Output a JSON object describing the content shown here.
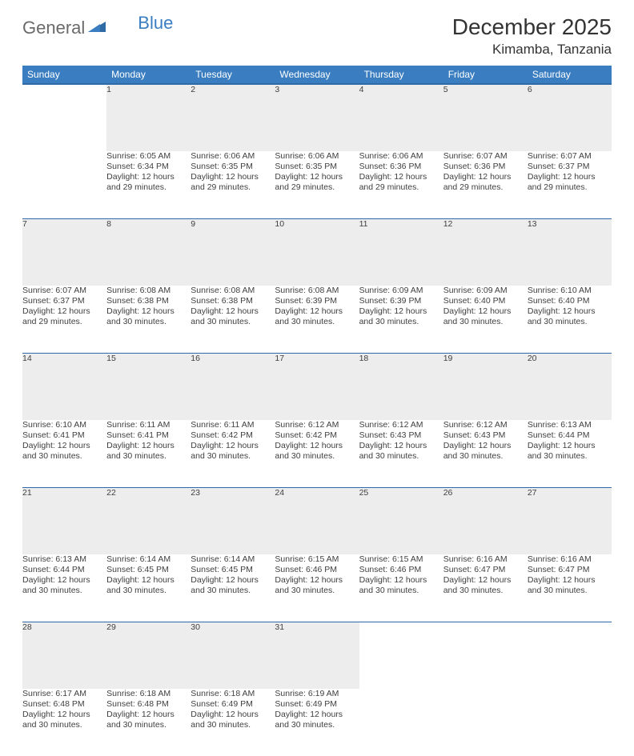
{
  "brand": {
    "part1": "General",
    "part2": "Blue"
  },
  "title": "December 2025",
  "location": "Kimamba, Tanzania",
  "colors": {
    "header_bg": "#3a7ec1",
    "header_border": "#2f6aa5",
    "daynum_bg": "#ededed",
    "text": "#333333",
    "logo_gray": "#6a6a6a",
    "logo_blue": "#3a7ec1"
  },
  "weekdays": [
    "Sunday",
    "Monday",
    "Tuesday",
    "Wednesday",
    "Thursday",
    "Friday",
    "Saturday"
  ],
  "weeks": [
    {
      "days": [
        {
          "empty": true
        },
        {
          "num": "1",
          "sunrise": "Sunrise: 6:05 AM",
          "sunset": "Sunset: 6:34 PM",
          "day1": "Daylight: 12 hours",
          "day2": "and 29 minutes."
        },
        {
          "num": "2",
          "sunrise": "Sunrise: 6:06 AM",
          "sunset": "Sunset: 6:35 PM",
          "day1": "Daylight: 12 hours",
          "day2": "and 29 minutes."
        },
        {
          "num": "3",
          "sunrise": "Sunrise: 6:06 AM",
          "sunset": "Sunset: 6:35 PM",
          "day1": "Daylight: 12 hours",
          "day2": "and 29 minutes."
        },
        {
          "num": "4",
          "sunrise": "Sunrise: 6:06 AM",
          "sunset": "Sunset: 6:36 PM",
          "day1": "Daylight: 12 hours",
          "day2": "and 29 minutes."
        },
        {
          "num": "5",
          "sunrise": "Sunrise: 6:07 AM",
          "sunset": "Sunset: 6:36 PM",
          "day1": "Daylight: 12 hours",
          "day2": "and 29 minutes."
        },
        {
          "num": "6",
          "sunrise": "Sunrise: 6:07 AM",
          "sunset": "Sunset: 6:37 PM",
          "day1": "Daylight: 12 hours",
          "day2": "and 29 minutes."
        }
      ]
    },
    {
      "days": [
        {
          "num": "7",
          "sunrise": "Sunrise: 6:07 AM",
          "sunset": "Sunset: 6:37 PM",
          "day1": "Daylight: 12 hours",
          "day2": "and 29 minutes."
        },
        {
          "num": "8",
          "sunrise": "Sunrise: 6:08 AM",
          "sunset": "Sunset: 6:38 PM",
          "day1": "Daylight: 12 hours",
          "day2": "and 30 minutes."
        },
        {
          "num": "9",
          "sunrise": "Sunrise: 6:08 AM",
          "sunset": "Sunset: 6:38 PM",
          "day1": "Daylight: 12 hours",
          "day2": "and 30 minutes."
        },
        {
          "num": "10",
          "sunrise": "Sunrise: 6:08 AM",
          "sunset": "Sunset: 6:39 PM",
          "day1": "Daylight: 12 hours",
          "day2": "and 30 minutes."
        },
        {
          "num": "11",
          "sunrise": "Sunrise: 6:09 AM",
          "sunset": "Sunset: 6:39 PM",
          "day1": "Daylight: 12 hours",
          "day2": "and 30 minutes."
        },
        {
          "num": "12",
          "sunrise": "Sunrise: 6:09 AM",
          "sunset": "Sunset: 6:40 PM",
          "day1": "Daylight: 12 hours",
          "day2": "and 30 minutes."
        },
        {
          "num": "13",
          "sunrise": "Sunrise: 6:10 AM",
          "sunset": "Sunset: 6:40 PM",
          "day1": "Daylight: 12 hours",
          "day2": "and 30 minutes."
        }
      ]
    },
    {
      "days": [
        {
          "num": "14",
          "sunrise": "Sunrise: 6:10 AM",
          "sunset": "Sunset: 6:41 PM",
          "day1": "Daylight: 12 hours",
          "day2": "and 30 minutes."
        },
        {
          "num": "15",
          "sunrise": "Sunrise: 6:11 AM",
          "sunset": "Sunset: 6:41 PM",
          "day1": "Daylight: 12 hours",
          "day2": "and 30 minutes."
        },
        {
          "num": "16",
          "sunrise": "Sunrise: 6:11 AM",
          "sunset": "Sunset: 6:42 PM",
          "day1": "Daylight: 12 hours",
          "day2": "and 30 minutes."
        },
        {
          "num": "17",
          "sunrise": "Sunrise: 6:12 AM",
          "sunset": "Sunset: 6:42 PM",
          "day1": "Daylight: 12 hours",
          "day2": "and 30 minutes."
        },
        {
          "num": "18",
          "sunrise": "Sunrise: 6:12 AM",
          "sunset": "Sunset: 6:43 PM",
          "day1": "Daylight: 12 hours",
          "day2": "and 30 minutes."
        },
        {
          "num": "19",
          "sunrise": "Sunrise: 6:12 AM",
          "sunset": "Sunset: 6:43 PM",
          "day1": "Daylight: 12 hours",
          "day2": "and 30 minutes."
        },
        {
          "num": "20",
          "sunrise": "Sunrise: 6:13 AM",
          "sunset": "Sunset: 6:44 PM",
          "day1": "Daylight: 12 hours",
          "day2": "and 30 minutes."
        }
      ]
    },
    {
      "days": [
        {
          "num": "21",
          "sunrise": "Sunrise: 6:13 AM",
          "sunset": "Sunset: 6:44 PM",
          "day1": "Daylight: 12 hours",
          "day2": "and 30 minutes."
        },
        {
          "num": "22",
          "sunrise": "Sunrise: 6:14 AM",
          "sunset": "Sunset: 6:45 PM",
          "day1": "Daylight: 12 hours",
          "day2": "and 30 minutes."
        },
        {
          "num": "23",
          "sunrise": "Sunrise: 6:14 AM",
          "sunset": "Sunset: 6:45 PM",
          "day1": "Daylight: 12 hours",
          "day2": "and 30 minutes."
        },
        {
          "num": "24",
          "sunrise": "Sunrise: 6:15 AM",
          "sunset": "Sunset: 6:46 PM",
          "day1": "Daylight: 12 hours",
          "day2": "and 30 minutes."
        },
        {
          "num": "25",
          "sunrise": "Sunrise: 6:15 AM",
          "sunset": "Sunset: 6:46 PM",
          "day1": "Daylight: 12 hours",
          "day2": "and 30 minutes."
        },
        {
          "num": "26",
          "sunrise": "Sunrise: 6:16 AM",
          "sunset": "Sunset: 6:47 PM",
          "day1": "Daylight: 12 hours",
          "day2": "and 30 minutes."
        },
        {
          "num": "27",
          "sunrise": "Sunrise: 6:16 AM",
          "sunset": "Sunset: 6:47 PM",
          "day1": "Daylight: 12 hours",
          "day2": "and 30 minutes."
        }
      ]
    },
    {
      "days": [
        {
          "num": "28",
          "sunrise": "Sunrise: 6:17 AM",
          "sunset": "Sunset: 6:48 PM",
          "day1": "Daylight: 12 hours",
          "day2": "and 30 minutes."
        },
        {
          "num": "29",
          "sunrise": "Sunrise: 6:18 AM",
          "sunset": "Sunset: 6:48 PM",
          "day1": "Daylight: 12 hours",
          "day2": "and 30 minutes."
        },
        {
          "num": "30",
          "sunrise": "Sunrise: 6:18 AM",
          "sunset": "Sunset: 6:49 PM",
          "day1": "Daylight: 12 hours",
          "day2": "and 30 minutes."
        },
        {
          "num": "31",
          "sunrise": "Sunrise: 6:19 AM",
          "sunset": "Sunset: 6:49 PM",
          "day1": "Daylight: 12 hours",
          "day2": "and 30 minutes."
        },
        {
          "empty": true
        },
        {
          "empty": true
        },
        {
          "empty": true
        }
      ]
    }
  ]
}
